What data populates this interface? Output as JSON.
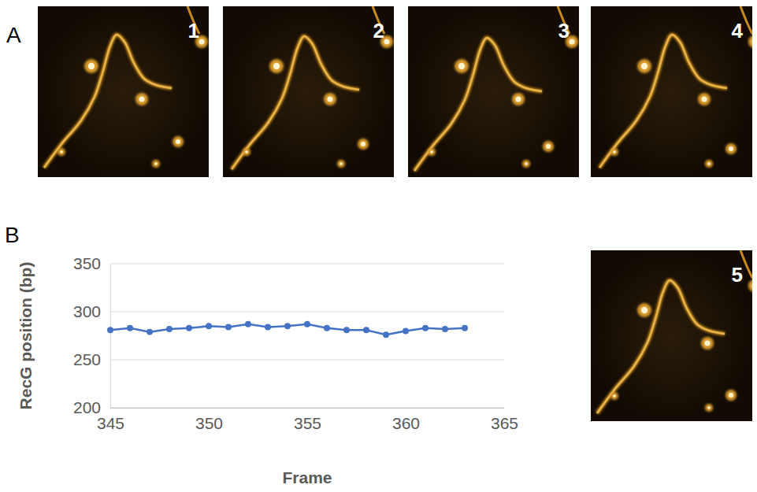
{
  "panel_labels": [
    "A",
    "B"
  ],
  "images": [
    {
      "label": "1"
    },
    {
      "label": "2"
    },
    {
      "label": "3"
    },
    {
      "label": "4"
    },
    {
      "label": "5"
    }
  ],
  "chart_data": {
    "type": "line",
    "x_label": "Frame",
    "y_label": "RecG position (bp)",
    "x": [
      345,
      346,
      347,
      348,
      349,
      350,
      351,
      352,
      353,
      354,
      355,
      356,
      357,
      358,
      359,
      360,
      361,
      362,
      363
    ],
    "series": [
      {
        "values": [
          281,
          283,
          279,
          282,
          283,
          285,
          284,
          287,
          284,
          285,
          287,
          283,
          281,
          281,
          276,
          280,
          283,
          282,
          283
        ],
        "color": "#4472c4",
        "marker": "circle"
      }
    ],
    "xlim": [
      345,
      365
    ],
    "xticks": [
      345,
      350,
      355,
      360,
      365
    ],
    "ylim": [
      200,
      350
    ],
    "yticks": [
      200,
      250,
      300,
      350
    ],
    "grid": true
  }
}
